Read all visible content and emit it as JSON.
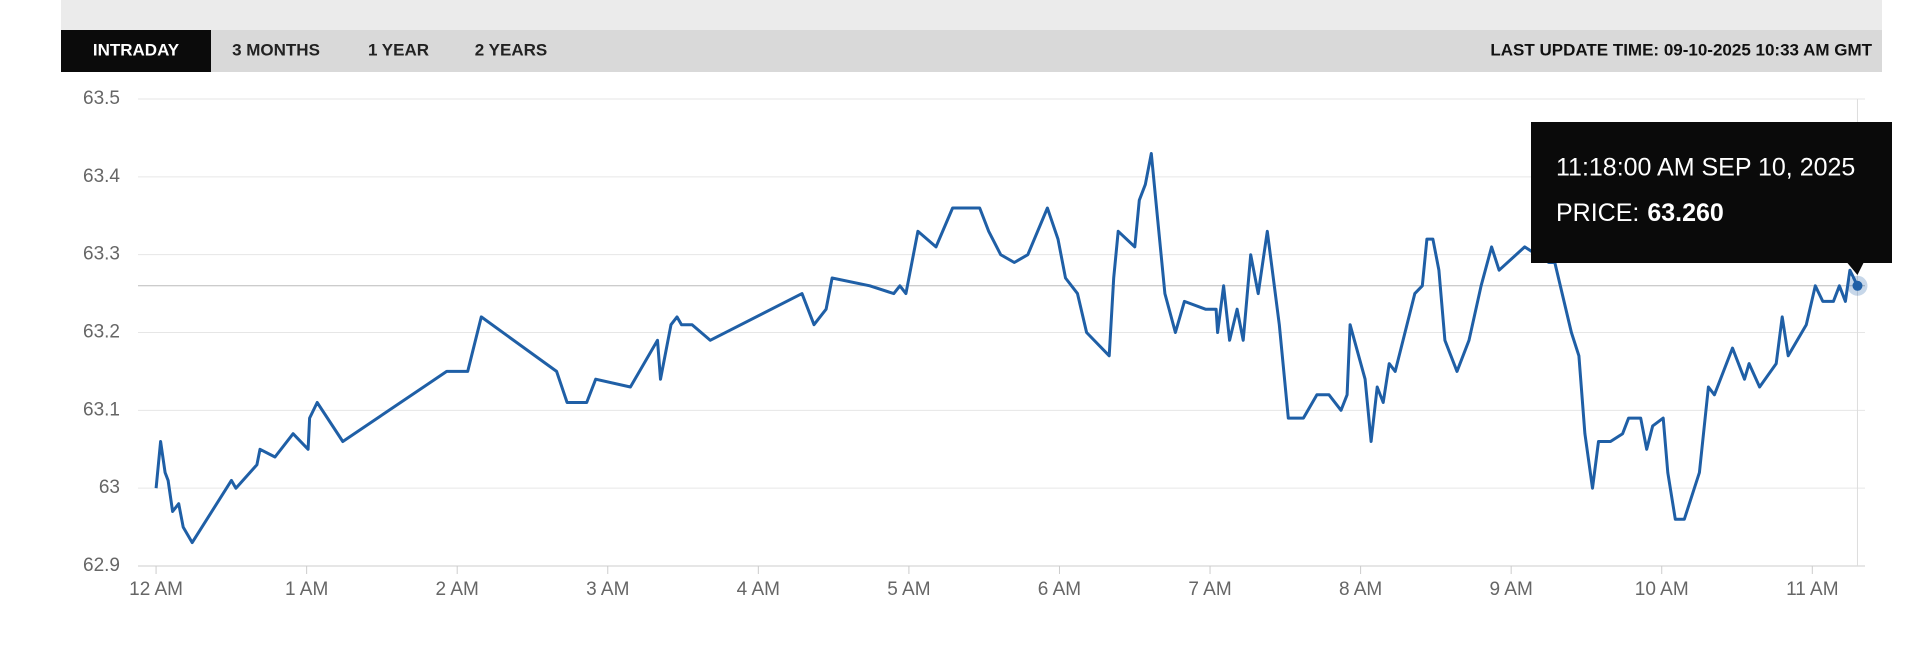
{
  "tabs": [
    "INTRADAY",
    "3 MONTHS",
    "1 YEAR",
    "2 YEARS"
  ],
  "active_tab": 0,
  "last_update": "LAST UPDATE TIME: 09-10-2025 10:33 AM GMT",
  "chart_data": {
    "type": "line",
    "color": "#1f5fa6",
    "x": [
      0,
      0.03,
      0.06,
      0.08,
      0.11,
      0.15,
      0.18,
      0.24,
      0.5,
      0.53,
      0.67,
      0.69,
      0.79,
      0.91,
      1.01,
      1.02,
      1.07,
      1.24,
      1.93,
      2.07,
      2.16,
      2.66,
      2.73,
      2.86,
      2.92,
      3.15,
      3.33,
      3.35,
      3.42,
      3.46,
      3.49,
      3.56,
      3.68,
      4.29,
      4.37,
      4.45,
      4.49,
      4.74,
      4.9,
      4.94,
      4.98,
      5.02,
      5.06,
      5.18,
      5.29,
      5.47,
      5.53,
      5.61,
      5.7,
      5.79,
      5.92,
      5.99,
      6.04,
      6.12,
      6.18,
      6.33,
      6.36,
      6.39,
      6.5,
      6.53,
      6.57,
      6.61,
      6.65,
      6.7,
      6.77,
      6.83,
      6.97,
      7.04,
      7.05,
      7.09,
      7.13,
      7.18,
      7.22,
      7.27,
      7.32,
      7.38,
      7.46,
      7.52,
      7.62,
      7.71,
      7.79,
      7.87,
      7.91,
      7.93,
      8.03,
      8.07,
      8.11,
      8.15,
      8.19,
      8.23,
      8.36,
      8.41,
      8.44,
      8.48,
      8.52,
      8.56,
      8.64,
      8.72,
      8.8,
      8.87,
      8.92,
      9.09,
      9.25,
      9.29,
      9.4,
      9.45,
      9.49,
      9.54,
      9.58,
      9.66,
      9.74,
      9.78,
      9.86,
      9.9,
      9.94,
      10.01,
      10.04,
      10.09,
      10.15,
      10.25,
      10.31,
      10.35,
      10.47,
      10.55,
      10.58,
      10.65,
      10.76,
      10.8,
      10.84,
      10.96,
      11.02,
      11.07,
      11.14,
      11.18,
      11.22,
      11.25,
      11.3
    ],
    "values": [
      63.0,
      63.06,
      63.02,
      63.01,
      62.97,
      62.98,
      62.95,
      62.93,
      63.01,
      63.0,
      63.03,
      63.05,
      63.04,
      63.07,
      63.05,
      63.09,
      63.11,
      63.06,
      63.15,
      63.15,
      63.22,
      63.15,
      63.11,
      63.11,
      63.14,
      63.13,
      63.19,
      63.14,
      63.21,
      63.22,
      63.21,
      63.21,
      63.19,
      63.25,
      63.21,
      63.23,
      63.27,
      63.26,
      63.25,
      63.26,
      63.25,
      63.29,
      63.33,
      63.31,
      63.36,
      63.36,
      63.33,
      63.3,
      63.29,
      63.3,
      63.36,
      63.32,
      63.27,
      63.25,
      63.2,
      63.17,
      63.27,
      63.33,
      63.31,
      63.37,
      63.39,
      63.43,
      63.35,
      63.25,
      63.2,
      63.24,
      63.23,
      63.23,
      63.2,
      63.26,
      63.19,
      63.23,
      63.19,
      63.3,
      63.25,
      63.33,
      63.21,
      63.09,
      63.09,
      63.12,
      63.12,
      63.1,
      63.12,
      63.21,
      63.14,
      63.06,
      63.13,
      63.11,
      63.16,
      63.15,
      63.25,
      63.26,
      63.32,
      63.32,
      63.28,
      63.19,
      63.15,
      63.19,
      63.26,
      63.31,
      63.28,
      63.31,
      63.29,
      63.29,
      63.2,
      63.17,
      63.07,
      63.0,
      63.06,
      63.06,
      63.07,
      63.09,
      63.09,
      63.05,
      63.08,
      63.09,
      63.02,
      62.96,
      62.96,
      63.02,
      63.13,
      63.12,
      63.18,
      63.14,
      63.16,
      63.13,
      63.16,
      63.22,
      63.17,
      63.21,
      63.26,
      63.24,
      63.24,
      63.26,
      63.24,
      63.28,
      63.26
    ],
    "xlim": [
      -0.12,
      11.35
    ],
    "ylim": [
      62.9,
      63.5
    ],
    "yticks": [
      62.9,
      63,
      63.1,
      63.2,
      63.3,
      63.4,
      63.5
    ],
    "xticks": [
      {
        "value": 0,
        "label": "12 AM"
      },
      {
        "value": 1,
        "label": "1 AM"
      },
      {
        "value": 2,
        "label": "2 AM"
      },
      {
        "value": 3,
        "label": "3 AM"
      },
      {
        "value": 4,
        "label": "4 AM"
      },
      {
        "value": 5,
        "label": "5 AM"
      },
      {
        "value": 6,
        "label": "6 AM"
      },
      {
        "value": 7,
        "label": "7 AM"
      },
      {
        "value": 8,
        "label": "8 AM"
      },
      {
        "value": 9,
        "label": "9 AM"
      },
      {
        "value": 10,
        "label": "10 AM"
      },
      {
        "value": 11,
        "label": "11 AM"
      }
    ],
    "grid": true,
    "tooltip": {
      "time": "11:18:00 AM SEP 10, 2025",
      "price_label": "PRICE:",
      "price": {
        "value": 63.26,
        "label": "63.260"
      }
    }
  }
}
